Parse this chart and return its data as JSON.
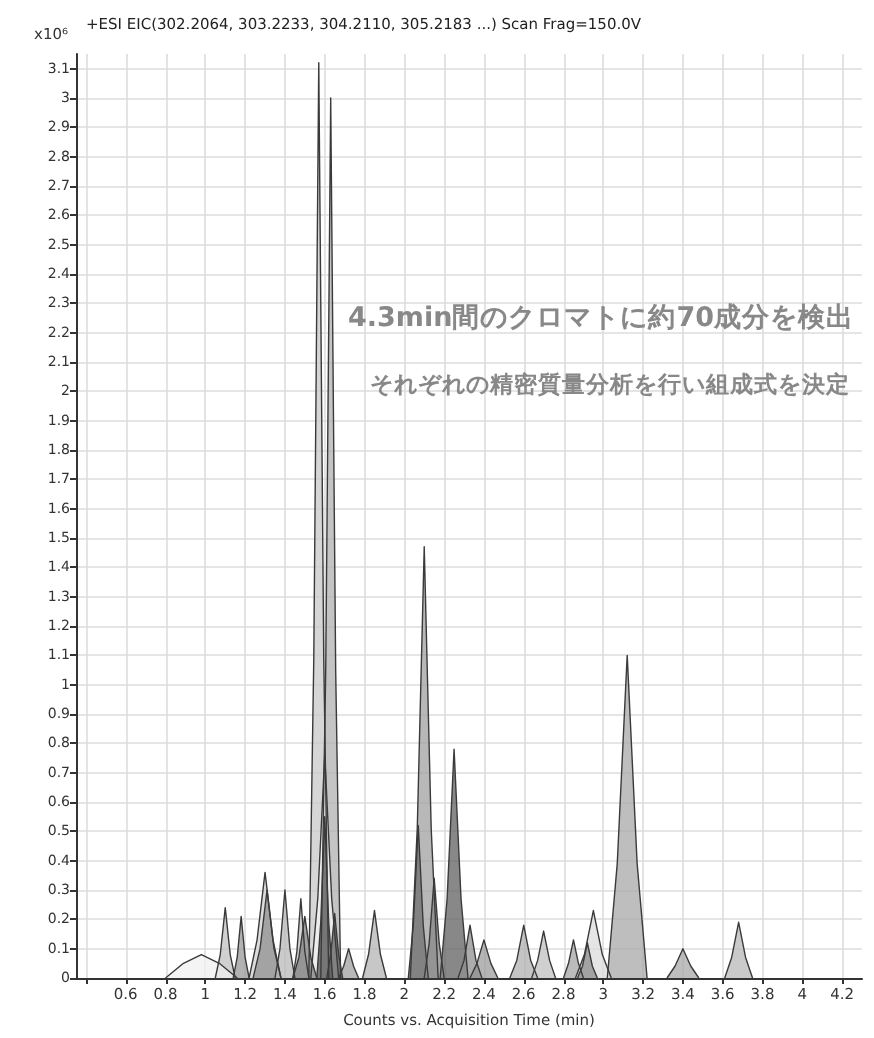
{
  "chart_data": {
    "type": "area",
    "title": "+ESI EIC(302.2064, 303.2233, 304.2110, 305.2183 ...) Scan Frag=150.0V",
    "xlabel": "Counts vs. Acquisition Time (min)",
    "ylabel": "x10⁶",
    "annotations": [
      "4.3min間のクロマトに約70成分を検出",
      "それぞれの精密質量分析を行い組成式を決定"
    ],
    "xlim": [
      0.35,
      4.3
    ],
    "xticks": [
      {
        "value": 0.4,
        "label": null
      },
      0.6,
      0.8,
      1,
      1.2,
      1.4,
      1.6,
      1.8,
      2,
      2.2,
      2.4,
      2.6,
      2.8,
      3,
      3.2,
      3.4,
      3.6,
      3.8,
      4,
      4.2
    ],
    "ylim": [
      0,
      3.15
    ],
    "yticks": [
      0,
      0.1,
      0.2,
      0.3,
      0.4,
      0.5,
      0.6,
      0.7,
      0.8,
      0.9,
      1,
      1.1,
      1.2,
      1.3,
      1.4,
      1.5,
      1.6,
      1.7,
      1.8,
      1.9,
      2,
      2.1,
      2.2,
      2.3,
      2.4,
      2.5,
      2.6,
      2.7,
      2.8,
      2.9,
      3,
      3.1
    ],
    "grid": true,
    "series": [
      {
        "color": "#c8c8c8",
        "x": [
          1.52,
          1.545,
          1.57,
          1.595,
          1.62
        ],
        "values": [
          0,
          1.09,
          3.12,
          1.09,
          0
        ]
      },
      {
        "color": "#b0b0b0",
        "x": [
          1.58,
          1.605,
          1.63,
          1.655,
          1.68
        ],
        "values": [
          0,
          1.05,
          3.0,
          1.05,
          0
        ]
      },
      {
        "color": "#f4f4f4",
        "x": [
          1.53,
          1.565,
          1.6,
          1.635,
          1.67
        ],
        "values": [
          0,
          0.27,
          0.76,
          0.27,
          0
        ]
      },
      {
        "color": "#505050",
        "x": [
          1.56,
          1.58,
          1.6,
          1.62,
          1.64
        ],
        "values": [
          0,
          0.19,
          0.55,
          0.19,
          0
        ]
      },
      {
        "color": "#a0a0a0",
        "x": [
          2.03,
          2.065,
          2.1,
          2.135,
          2.17
        ],
        "values": [
          0,
          0.51,
          1.47,
          0.51,
          0
        ]
      },
      {
        "color": "#606060",
        "x": [
          2.18,
          2.215,
          2.25,
          2.285,
          2.32
        ],
        "values": [
          0,
          0.27,
          0.78,
          0.27,
          0
        ]
      },
      {
        "color": "#707070",
        "x": [
          2.02,
          2.045,
          2.07,
          2.095,
          2.12
        ],
        "values": [
          0,
          0.18,
          0.52,
          0.18,
          0
        ]
      },
      {
        "color": "#888888",
        "x": [
          2.1,
          2.125,
          2.15,
          2.175,
          2.2
        ],
        "values": [
          0,
          0.12,
          0.34,
          0.12,
          0
        ]
      },
      {
        "color": "#a8a8a8",
        "x": [
          3.02,
          3.07,
          3.12,
          3.17,
          3.22
        ],
        "values": [
          0,
          0.39,
          1.1,
          0.39,
          0
        ]
      },
      {
        "color": "#d0d0d0",
        "x": [
          1.22,
          1.26,
          1.3,
          1.34,
          1.38
        ],
        "values": [
          0,
          0.13,
          0.36,
          0.13,
          0
        ]
      },
      {
        "color": "#909090",
        "x": [
          1.24,
          1.275,
          1.31,
          1.345,
          1.38
        ],
        "values": [
          0,
          0.1,
          0.3,
          0.1,
          0
        ]
      },
      {
        "color": "#c0c0c0",
        "x": [
          1.05,
          1.075,
          1.1,
          1.125,
          1.15
        ],
        "values": [
          0,
          0.08,
          0.24,
          0.08,
          0
        ]
      },
      {
        "color": "#989898",
        "x": [
          1.14,
          1.16,
          1.18,
          1.2,
          1.22
        ],
        "values": [
          0,
          0.07,
          0.21,
          0.07,
          0
        ]
      },
      {
        "color": "#b8b8b8",
        "x": [
          1.35,
          1.375,
          1.4,
          1.425,
          1.45
        ],
        "values": [
          0,
          0.1,
          0.3,
          0.1,
          0
        ]
      },
      {
        "color": "#c4c4c4",
        "x": [
          1.44,
          1.46,
          1.48,
          1.5,
          1.52
        ],
        "values": [
          0,
          0.09,
          0.27,
          0.09,
          0
        ]
      },
      {
        "color": "#808080",
        "x": [
          1.44,
          1.47,
          1.5,
          1.53,
          1.56
        ],
        "values": [
          0,
          0.07,
          0.21,
          0.07,
          0
        ]
      },
      {
        "color": "#b4b4b4",
        "x": [
          1.79,
          1.82,
          1.85,
          1.88,
          1.91
        ],
        "values": [
          0,
          0.08,
          0.23,
          0.08,
          0
        ]
      },
      {
        "color": "#f0f0f0",
        "x": [
          0.8,
          0.89,
          0.98,
          1.07,
          1.16
        ],
        "values": [
          0,
          0.05,
          0.08,
          0.05,
          0
        ]
      },
      {
        "color": "#9c9c9c",
        "x": [
          2.33,
          2.365,
          2.4,
          2.435,
          2.47
        ],
        "values": [
          0,
          0.05,
          0.13,
          0.05,
          0
        ]
      },
      {
        "color": "#b0b0b0",
        "x": [
          2.53,
          2.565,
          2.6,
          2.635,
          2.67
        ],
        "values": [
          0,
          0.06,
          0.18,
          0.06,
          0
        ]
      },
      {
        "color": "#c0c0c0",
        "x": [
          2.64,
          2.67,
          2.7,
          2.73,
          2.76
        ],
        "values": [
          0,
          0.06,
          0.16,
          0.06,
          0
        ]
      },
      {
        "color": "#a4a4a4",
        "x": [
          2.8,
          2.825,
          2.85,
          2.875,
          2.9
        ],
        "values": [
          0,
          0.05,
          0.13,
          0.05,
          0
        ]
      },
      {
        "color": "#dcdcdc",
        "x": [
          2.86,
          2.905,
          2.95,
          2.995,
          3.04
        ],
        "values": [
          0,
          0.08,
          0.23,
          0.08,
          0
        ]
      },
      {
        "color": "#8c8c8c",
        "x": [
          2.87,
          2.895,
          2.92,
          2.945,
          2.97
        ],
        "values": [
          0,
          0.04,
          0.12,
          0.04,
          0
        ]
      },
      {
        "color": "#a8a8a8",
        "x": [
          3.32,
          3.36,
          3.4,
          3.44,
          3.48
        ],
        "values": [
          0,
          0.04,
          0.1,
          0.04,
          0
        ]
      },
      {
        "color": "#b8b8b8",
        "x": [
          3.61,
          3.645,
          3.68,
          3.715,
          3.75
        ],
        "values": [
          0,
          0.07,
          0.19,
          0.07,
          0
        ]
      },
      {
        "color": "#a0a0a0",
        "x": [
          1.67,
          1.695,
          1.72,
          1.745,
          1.77
        ],
        "values": [
          0,
          0.04,
          0.1,
          0.04,
          0
        ]
      },
      {
        "color": "#909090",
        "x": [
          2.27,
          2.3,
          2.33,
          2.36,
          2.39
        ],
        "values": [
          0,
          0.06,
          0.18,
          0.06,
          0
        ]
      },
      {
        "color": "#606060",
        "x": [
          1.61,
          1.63,
          1.65,
          1.67,
          1.69
        ],
        "values": [
          0,
          0.08,
          0.22,
          0.08,
          0
        ]
      }
    ]
  }
}
